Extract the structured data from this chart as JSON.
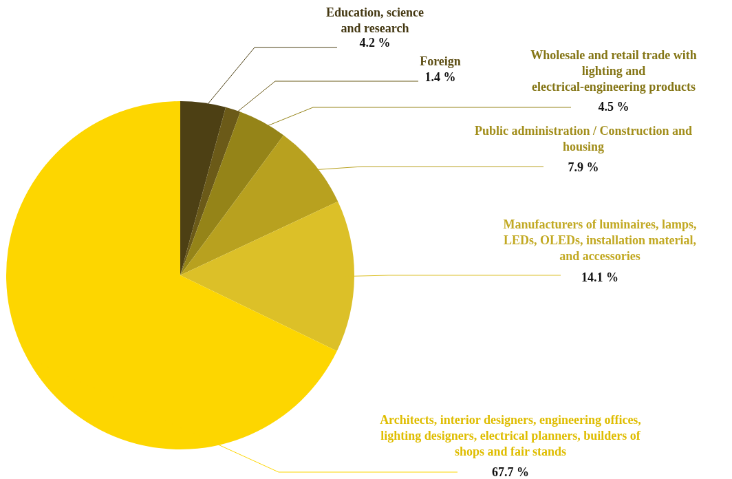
{
  "chart_data": {
    "type": "pie",
    "categories": [
      "Education, science and research",
      "Foreign",
      "Wholesale and retail trade with lighting and electrical-engineering products",
      "Public administration / Construction and housing",
      "Manufacturers of luminaires, lamps, LEDs, OLEDs, installation material, and accessories",
      "Architects, interior designers, engineering offices, lighting designers, electrical planners, builders of shops and fair stands"
    ],
    "values": [
      4.2,
      1.4,
      4.5,
      7.9,
      14.1,
      67.7
    ],
    "colors": [
      "#4d4014",
      "#6b5a18",
      "#958418",
      "#b8a11f",
      "#dcc028",
      "#fdd600"
    ],
    "value_labels": [
      "4.2 %",
      "1.4 %",
      "4.5 %",
      "7.9 %",
      "14.1 %",
      "67.7 %"
    ]
  }
}
